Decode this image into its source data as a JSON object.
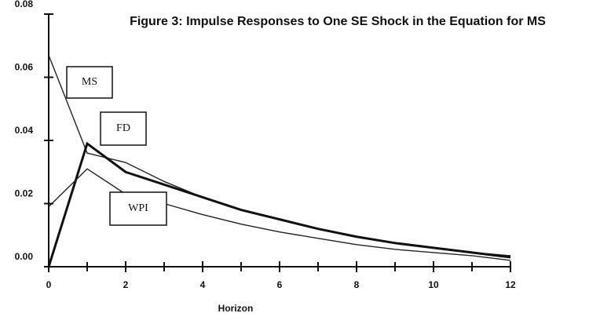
{
  "chart_data": {
    "type": "line",
    "title": "Figure 3: Impulse Responses to One SE Shock in the Equation for MS",
    "x_label": "Horizon",
    "x": [
      0,
      1,
      2,
      3,
      4,
      5,
      6,
      7,
      8,
      9,
      10,
      11,
      12
    ],
    "series": [
      {
        "name": "MS",
        "color": "#222222",
        "values": [
          0.067,
          0.036,
          0.033,
          0.027,
          0.022,
          0.018,
          0.015,
          0.012,
          0.0095,
          0.0075,
          0.006,
          0.0045,
          0.0035
        ]
      },
      {
        "name": "FD",
        "color": "#111111",
        "values": [
          0,
          0.039,
          0.03,
          0.026,
          0.022,
          0.018,
          0.015,
          0.012,
          0.0095,
          0.0075,
          0.006,
          0.0045,
          0.003
        ]
      },
      {
        "name": "WPI",
        "color": "#222222",
        "values": [
          0.019,
          0.031,
          0.023,
          0.02,
          0.0165,
          0.0135,
          0.011,
          0.009,
          0.007,
          0.0055,
          0.0045,
          0.0035,
          0.002
        ]
      }
    ],
    "xlim": [
      0,
      12
    ],
    "xticks": [
      0,
      2,
      4,
      6,
      8,
      10,
      12
    ],
    "x_minor_ticks": [
      1,
      3,
      5,
      7,
      9,
      11
    ],
    "ylim": [
      0,
      0.08
    ],
    "yticks": [
      {
        "value": 0,
        "label": "0.00"
      },
      0.02,
      0.04,
      0.06,
      0.08
    ]
  }
}
